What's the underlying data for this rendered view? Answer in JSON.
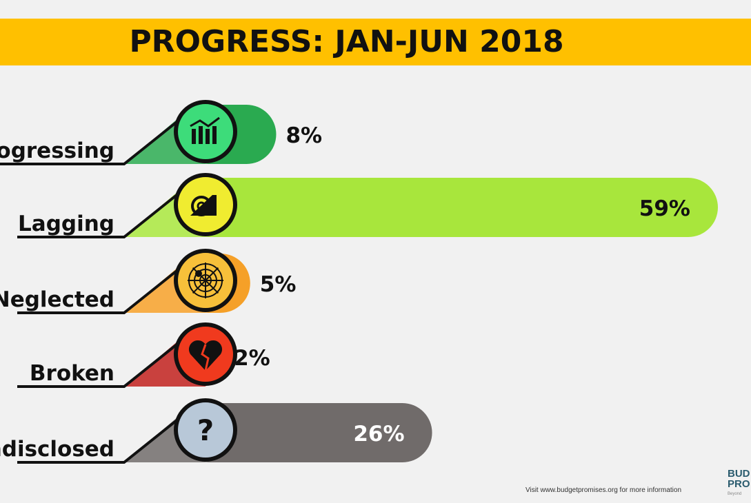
{
  "chart_data": {
    "type": "bar",
    "title": "PROGRESS: JAN-JUN 2018",
    "categories": [
      "Progressing",
      "Lagging",
      "Neglected",
      "Broken",
      "Undisclosed"
    ],
    "values": [
      8,
      59,
      5,
      2,
      26
    ],
    "value_labels": [
      "8%",
      "59%",
      "5%",
      "2%",
      "26%"
    ],
    "icons": [
      "chart-growth-icon",
      "snail-icon",
      "spider-web-icon",
      "broken-heart-icon",
      "question-mark-icon"
    ],
    "bar_colors": [
      "#2AAA50",
      "#A8E63C",
      "#F5A028",
      "#C0201C",
      "#706B6A"
    ],
    "circle_colors": [
      "#3DDC7A",
      "#F0EC30",
      "#F7C03A",
      "#F03A1E",
      "#B8C8D8"
    ],
    "orientation": "horizontal"
  },
  "footer": "Visit www.budgetpromises.org for more information",
  "logo": {
    "line1": "BUD",
    "line2": "PRO",
    "line3": "Beyond"
  },
  "banner_color": "#FFC000"
}
